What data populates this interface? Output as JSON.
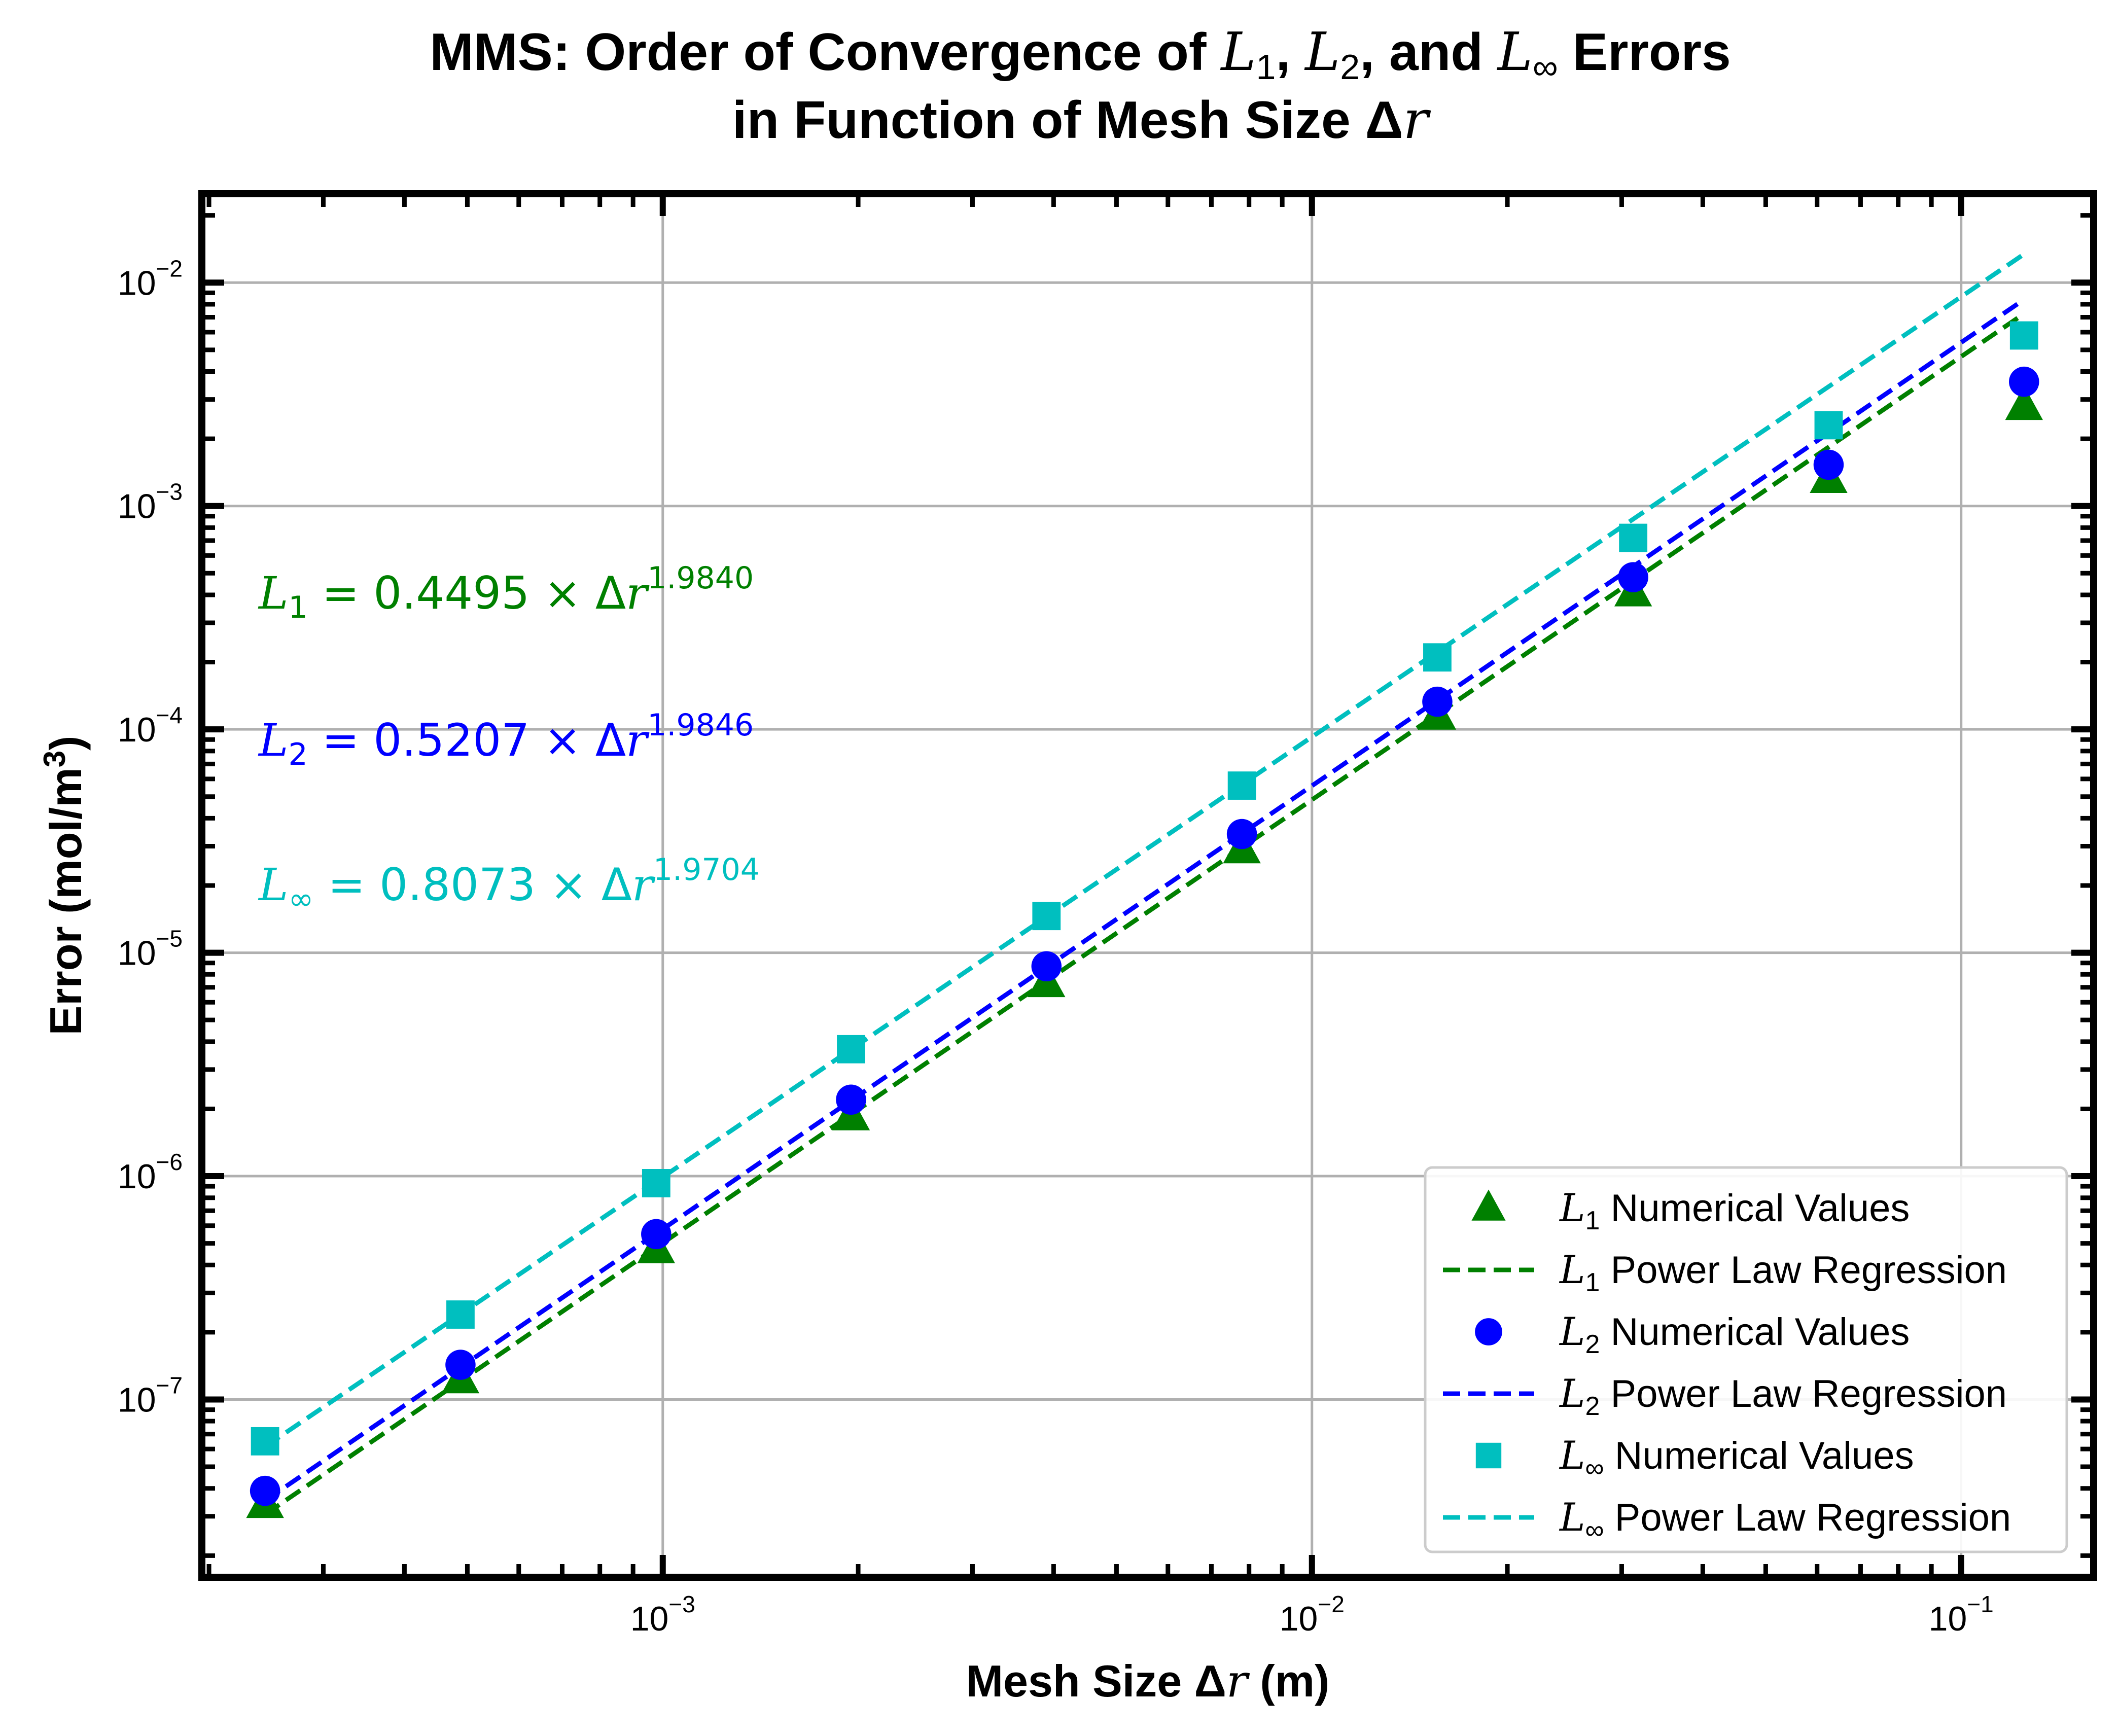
{
  "chart_data": {
    "type": "scatter",
    "title": {
      "line1": {
        "prefix": "MMS: Order of Convergence of ",
        "l1": "L",
        "l1_sub": "1",
        "sep1": ", ",
        "l2": "L",
        "l2_sub": "2",
        "sep2": ", and ",
        "linf": "L",
        "linf_sub": "∞",
        "suffix": " Errors"
      },
      "line2": {
        "prefix": "in Function of Mesh Size Δ",
        "var": "r"
      }
    },
    "xlabel": {
      "prefix": "Mesh Size Δ",
      "var": "r",
      "suffix": " (m)"
    },
    "ylabel": {
      "text": "Error (mol/m",
      "sup": "3",
      "close": ")"
    },
    "x_scale": "log",
    "y_scale": "log",
    "xlim": [
      0.000195,
      0.16
    ],
    "ylim": [
      1.6e-08,
      0.025
    ],
    "grid": true,
    "x_ticks": [
      {
        "value": 0.001,
        "base": "10",
        "exp": "−3"
      },
      {
        "value": 0.01,
        "base": "10",
        "exp": "−2"
      },
      {
        "value": 0.1,
        "base": "10",
        "exp": "−1"
      }
    ],
    "y_ticks": [
      {
        "value": 1e-07,
        "base": "10",
        "exp": "−7"
      },
      {
        "value": 1e-06,
        "base": "10",
        "exp": "−6"
      },
      {
        "value": 1e-05,
        "base": "10",
        "exp": "−5"
      },
      {
        "value": 0.0001,
        "base": "10",
        "exp": "−4"
      },
      {
        "value": 0.001,
        "base": "10",
        "exp": "−3"
      },
      {
        "value": 0.01,
        "base": "10",
        "exp": "−2"
      }
    ],
    "x": [
      0.000244,
      0.000488,
      0.000977,
      0.00195,
      0.0039,
      0.0078,
      0.0156,
      0.03125,
      0.0625,
      0.125
    ],
    "series": [
      {
        "name": "L1",
        "color": "#008000",
        "marker": "triangle",
        "values": [
          3.4e-08,
          1.23e-07,
          4.7e-07,
          1.85e-06,
          7.3e-06,
          2.9e-05,
          0.000115,
          0.00041,
          0.00132,
          0.0028
        ],
        "fit": {
          "coef": 0.4495,
          "exp": 1.984
        },
        "equation": {
          "sym": "L",
          "sub": "1",
          "body": " = 0.4495 × Δ",
          "var": "r",
          "exp": "1.9840"
        },
        "legend_points": {
          "sym": "L",
          "sub": "1",
          "text": " Numerical Values"
        },
        "legend_fit": {
          "sym": "L",
          "sub": "1",
          "text": " Power Law Regression"
        }
      },
      {
        "name": "L2",
        "color": "#0000ff",
        "marker": "circle",
        "values": [
          3.9e-08,
          1.43e-07,
          5.5e-07,
          2.2e-06,
          8.7e-06,
          3.4e-05,
          0.000133,
          0.00048,
          0.00153,
          0.0036
        ],
        "fit": {
          "coef": 0.5207,
          "exp": 1.9846
        },
        "equation": {
          "sym": "L",
          "sub": "2",
          "body": " = 0.5207 × Δ",
          "var": "r",
          "exp": "1.9846"
        },
        "legend_points": {
          "sym": "L",
          "sub": "2",
          "text": " Numerical Values"
        },
        "legend_fit": {
          "sym": "L",
          "sub": "2",
          "text": " Power Law Regression"
        }
      },
      {
        "name": "L∞",
        "color": "#00bfbf",
        "marker": "square",
        "values": [
          6.5e-08,
          2.4e-07,
          9.3e-07,
          3.7e-06,
          1.46e-05,
          5.6e-05,
          0.00021,
          0.00072,
          0.0023,
          0.0058
        ],
        "fit": {
          "coef": 0.8073,
          "exp": 1.9704
        },
        "equation": {
          "sym": "L",
          "sub": "∞",
          "body": " = 0.8073 × Δ",
          "var": "r",
          "exp": "1.9704"
        },
        "legend_points": {
          "sym": "L",
          "sub": "∞",
          "text": " Numerical Values"
        },
        "legend_fit": {
          "sym": "L",
          "sub": "∞",
          "text": " Power Law Regression"
        }
      }
    ],
    "legend_placement": "lower-right"
  }
}
